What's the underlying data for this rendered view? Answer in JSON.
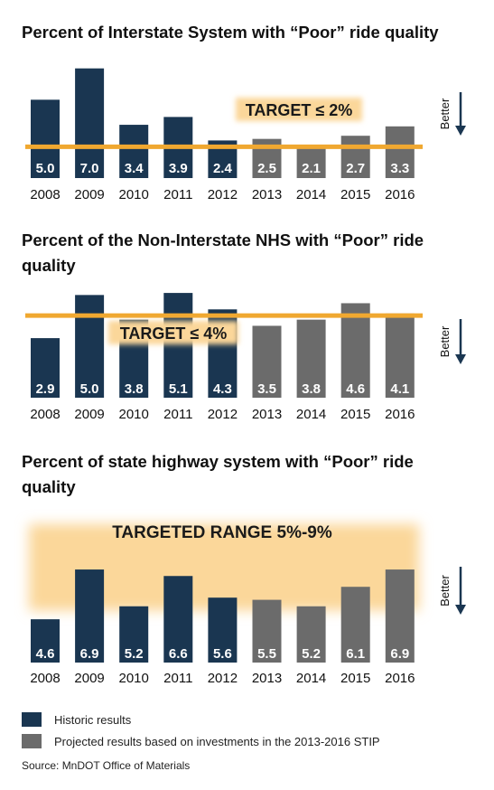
{
  "colors": {
    "historic": "#1a3651",
    "projected": "#6b6b6b",
    "target": "#f0a830",
    "target_band": "#fbd79a",
    "text_on_bar": "#ffffff",
    "arrow": "#1a3651"
  },
  "better_label": "Better",
  "chart_data": [
    {
      "type": "bar",
      "title": "Percent of Interstate System with “Poor” ride quality",
      "categories": [
        "2008",
        "2009",
        "2010",
        "2011",
        "2012",
        "2013",
        "2014",
        "2015",
        "2016"
      ],
      "values": [
        5.0,
        7.0,
        3.4,
        3.9,
        2.4,
        2.5,
        2.1,
        2.7,
        3.3
      ],
      "labels": [
        "5.0",
        "7.0",
        "3.4",
        "3.9",
        "2.4",
        "2.5",
        "2.1",
        "2.7",
        "3.3"
      ],
      "status": [
        "historic",
        "historic",
        "historic",
        "historic",
        "historic",
        "projected",
        "projected",
        "projected",
        "projected"
      ],
      "ylim": [
        0,
        7.5
      ],
      "target": {
        "kind": "line",
        "value": 2,
        "label": "TARGET ≤ 2%"
      }
    },
    {
      "type": "bar",
      "title": "Percent of the Non-Interstate NHS with “Poor” ride quality",
      "categories": [
        "2008",
        "2009",
        "2010",
        "2011",
        "2012",
        "2013",
        "2014",
        "2015",
        "2016"
      ],
      "values": [
        2.9,
        5.0,
        3.8,
        5.1,
        4.3,
        3.5,
        3.8,
        4.6,
        4.1
      ],
      "labels": [
        "2.9",
        "5.0",
        "3.8",
        "5.1",
        "4.3",
        "3.5",
        "3.8",
        "4.6",
        "4.1"
      ],
      "status": [
        "historic",
        "historic",
        "historic",
        "historic",
        "historic",
        "projected",
        "projected",
        "projected",
        "projected"
      ],
      "ylim": [
        0,
        5.5
      ],
      "target": {
        "kind": "line",
        "value": 4,
        "label": "TARGET ≤ 4%"
      }
    },
    {
      "type": "bar",
      "title": "Percent of state highway system with “Poor” ride quality",
      "categories": [
        "2008",
        "2009",
        "2010",
        "2011",
        "2012",
        "2013",
        "2014",
        "2015",
        "2016"
      ],
      "values": [
        4.6,
        6.9,
        5.2,
        6.6,
        5.6,
        5.5,
        5.2,
        6.1,
        6.9
      ],
      "labels": [
        "4.6",
        "6.9",
        "5.2",
        "6.6",
        "5.6",
        "5.5",
        "5.2",
        "6.1",
        "6.9"
      ],
      "status": [
        "historic",
        "historic",
        "historic",
        "historic",
        "historic",
        "projected",
        "projected",
        "projected",
        "projected"
      ],
      "ylim": [
        2.6,
        9.2
      ],
      "target": {
        "kind": "band",
        "range": [
          5,
          9
        ],
        "label": "TARGETED RANGE 5%-9%"
      }
    }
  ],
  "legend": [
    {
      "key": "historic",
      "label": "Historic results"
    },
    {
      "key": "projected",
      "label": "Projected results based on investments in the 2013-2016 STIP"
    }
  ],
  "source": "Source: MnDOT Office of Materials"
}
